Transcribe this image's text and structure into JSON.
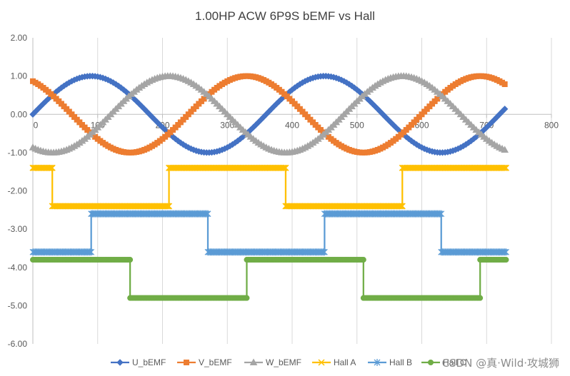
{
  "chart_data": {
    "type": "line",
    "title": "1.00HP ACW 6P9S bEMF vs Hall",
    "xlabel": "",
    "ylabel": "",
    "xlim": [
      0,
      800
    ],
    "ylim": [
      -6,
      2
    ],
    "x_ticks": [
      "0",
      "100",
      "200",
      "300",
      "400",
      "500",
      "600",
      "700",
      "800"
    ],
    "y_ticks": [
      "2.00",
      "1.00",
      "0.00",
      "-1.00",
      "-2.00",
      "-3.00",
      "-4.00",
      "-5.00",
      "-6.00"
    ],
    "grid": "vertical",
    "legend_position": "bottom",
    "x_range_data": [
      0,
      730
    ],
    "series": [
      {
        "name": "U_bEMF",
        "color": "#4472c4",
        "marker": "diamond",
        "shape": "sine",
        "amplitude": 1.0,
        "period": 360,
        "phase_deg": 0,
        "offset": 0
      },
      {
        "name": "V_bEMF",
        "color": "#ed7d31",
        "marker": "square",
        "shape": "sine",
        "amplitude": 1.0,
        "period": 360,
        "phase_deg": 120,
        "offset": 0
      },
      {
        "name": "W_bEMF",
        "color": "#a5a5a5",
        "marker": "triangle",
        "shape": "sine",
        "amplitude": 1.0,
        "period": 360,
        "phase_deg": 240,
        "offset": 0
      },
      {
        "name": "Hall A",
        "color": "#ffc000",
        "marker": "x",
        "shape": "step",
        "points": [
          [
            0,
            -1.4
          ],
          [
            30,
            -1.4
          ],
          [
            30,
            -2.4
          ],
          [
            210,
            -2.4
          ],
          [
            210,
            -1.4
          ],
          [
            390,
            -1.4
          ],
          [
            390,
            -2.4
          ],
          [
            570,
            -2.4
          ],
          [
            570,
            -1.4
          ],
          [
            730,
            -1.4
          ]
        ]
      },
      {
        "name": "Hall B",
        "color": "#5b9bd5",
        "marker": "asterisk",
        "shape": "step",
        "points": [
          [
            0,
            -3.6
          ],
          [
            90,
            -3.6
          ],
          [
            90,
            -2.6
          ],
          [
            270,
            -2.6
          ],
          [
            270,
            -3.6
          ],
          [
            450,
            -3.6
          ],
          [
            450,
            -2.6
          ],
          [
            630,
            -2.6
          ],
          [
            630,
            -3.6
          ],
          [
            730,
            -3.6
          ]
        ]
      },
      {
        "name": "Hall C",
        "color": "#70ad47",
        "marker": "circle",
        "shape": "step",
        "points": [
          [
            0,
            -3.8
          ],
          [
            150,
            -3.8
          ],
          [
            150,
            -4.8
          ],
          [
            330,
            -4.8
          ],
          [
            330,
            -3.8
          ],
          [
            510,
            -3.8
          ],
          [
            510,
            -4.8
          ],
          [
            690,
            -4.8
          ],
          [
            690,
            -3.8
          ],
          [
            730,
            -3.8
          ]
        ]
      }
    ]
  },
  "watermark": "CSDN @真·Wild·攻城狮"
}
